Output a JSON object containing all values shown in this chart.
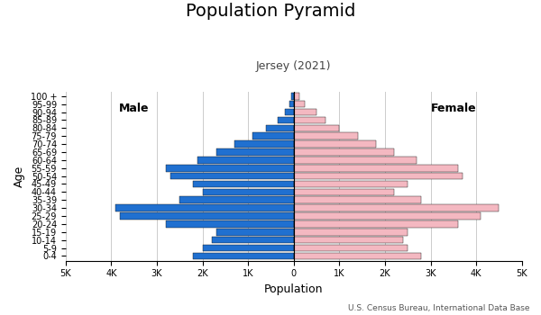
{
  "title": "Population Pyramid",
  "subtitle": "Jersey (2021)",
  "xlabel": "Population",
  "ylabel": "Age",
  "source": "U.S. Census Bureau, International Data Base",
  "male_label": "Male",
  "female_label": "Female",
  "age_groups": [
    "0-4",
    "5-9",
    "10-14",
    "15-19",
    "20-24",
    "25-29",
    "30-34",
    "35-39",
    "40-44",
    "45-49",
    "50-54",
    "55-59",
    "60-64",
    "65-69",
    "70-74",
    "75-79",
    "80-84",
    "85-89",
    "90-94",
    "95-99",
    "100 +"
  ],
  "male_values": [
    2200,
    2000,
    1800,
    1700,
    2800,
    3800,
    3900,
    2500,
    2000,
    2200,
    2700,
    2800,
    2100,
    1700,
    1300,
    900,
    600,
    350,
    200,
    100,
    50
  ],
  "female_values": [
    2800,
    2500,
    2400,
    2500,
    3600,
    4100,
    4500,
    2800,
    2200,
    2500,
    3700,
    3600,
    2700,
    2200,
    1800,
    1400,
    1000,
    700,
    500,
    250,
    120
  ],
  "male_color": "#2070d0",
  "female_color": "#f4b8c1",
  "background_color": "#ffffff",
  "grid_color": "#cccccc",
  "bar_edge_color": "#111111",
  "xlim": 5000,
  "title_fontsize": 14,
  "subtitle_fontsize": 9,
  "axis_label_fontsize": 9,
  "tick_fontsize": 7,
  "source_fontsize": 6.5
}
